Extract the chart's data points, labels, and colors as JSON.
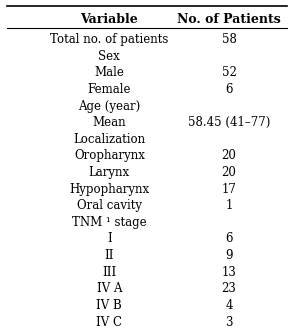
{
  "title_col1": "Variable",
  "title_col2": "No. of Patients",
  "rows": [
    [
      "Total no. of patients",
      "58"
    ],
    [
      "Sex",
      ""
    ],
    [
      "Male",
      "52"
    ],
    [
      "Female",
      "6"
    ],
    [
      "Age (year)",
      ""
    ],
    [
      "Mean",
      "58.45 (41–77)"
    ],
    [
      "Localization",
      ""
    ],
    [
      "Oropharynx",
      "20"
    ],
    [
      "Larynx",
      "20"
    ],
    [
      "Hypopharynx",
      "17"
    ],
    [
      "Oral cavity",
      "1"
    ],
    [
      "TNM ¹ stage",
      ""
    ],
    [
      "I",
      "6"
    ],
    [
      "II",
      "9"
    ],
    [
      "III",
      "13"
    ],
    [
      "IV A",
      "23"
    ],
    [
      "IV B",
      "4"
    ],
    [
      "IV C",
      "3"
    ]
  ],
  "bg_color": "#ffffff",
  "text_color": "#000000",
  "font_size": 8.5,
  "header_font_size": 9.0,
  "figsize": [
    2.96,
    3.31
  ],
  "dpi": 100
}
